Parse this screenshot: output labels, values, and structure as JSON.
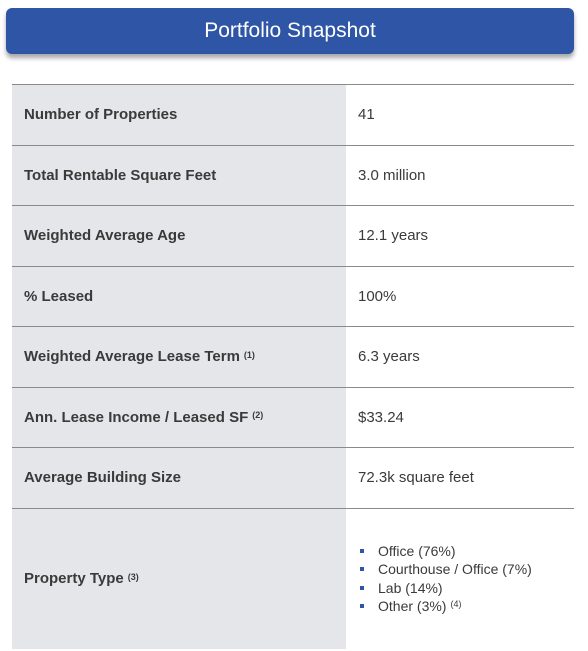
{
  "header": {
    "title": "Portfolio Snapshot"
  },
  "table": {
    "rows": [
      {
        "label": "Number of Properties",
        "value": "41"
      },
      {
        "label": "Total Rentable Square Feet",
        "value": "3.0 million"
      },
      {
        "label": "Weighted Average Age",
        "value": "12.1 years"
      },
      {
        "label": "% Leased",
        "value": "100%"
      },
      {
        "label": "Weighted Average Lease Term",
        "note": "(1)",
        "value": "6.3 years"
      },
      {
        "label": "Ann. Lease Income / Leased SF",
        "note": "(2)",
        "value": "$33.24"
      },
      {
        "label": "Average Building Size",
        "value": "72.3k square feet"
      },
      {
        "label": "Property Type",
        "note": "(3)",
        "items": [
          {
            "text": "Office (76%)"
          },
          {
            "text": "Courthouse / Office (7%)"
          },
          {
            "text": "Lab (14%)"
          },
          {
            "text": "Other (3%)",
            "note": "(4)"
          }
        ]
      }
    ]
  }
}
